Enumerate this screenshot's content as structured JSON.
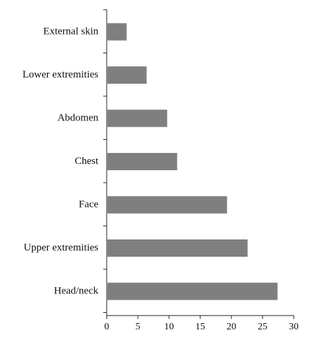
{
  "chart_data": {
    "type": "bar",
    "orientation": "horizontal",
    "title": "",
    "xlabel": "",
    "ylabel": "",
    "categories": [
      "External skin",
      "Lower extremities",
      "Abdomen",
      "Chest",
      "Face",
      "Upper extremities",
      "Head/neck"
    ],
    "values": [
      3.2,
      6.4,
      9.7,
      11.3,
      19.3,
      22.6,
      27.4
    ],
    "xlim": [
      0,
      30
    ],
    "xticks": [
      "0",
      "5",
      "10",
      "15",
      "20",
      "25",
      "30"
    ],
    "grid": false,
    "legend": "none",
    "bar_color": "#7f7f7f"
  }
}
